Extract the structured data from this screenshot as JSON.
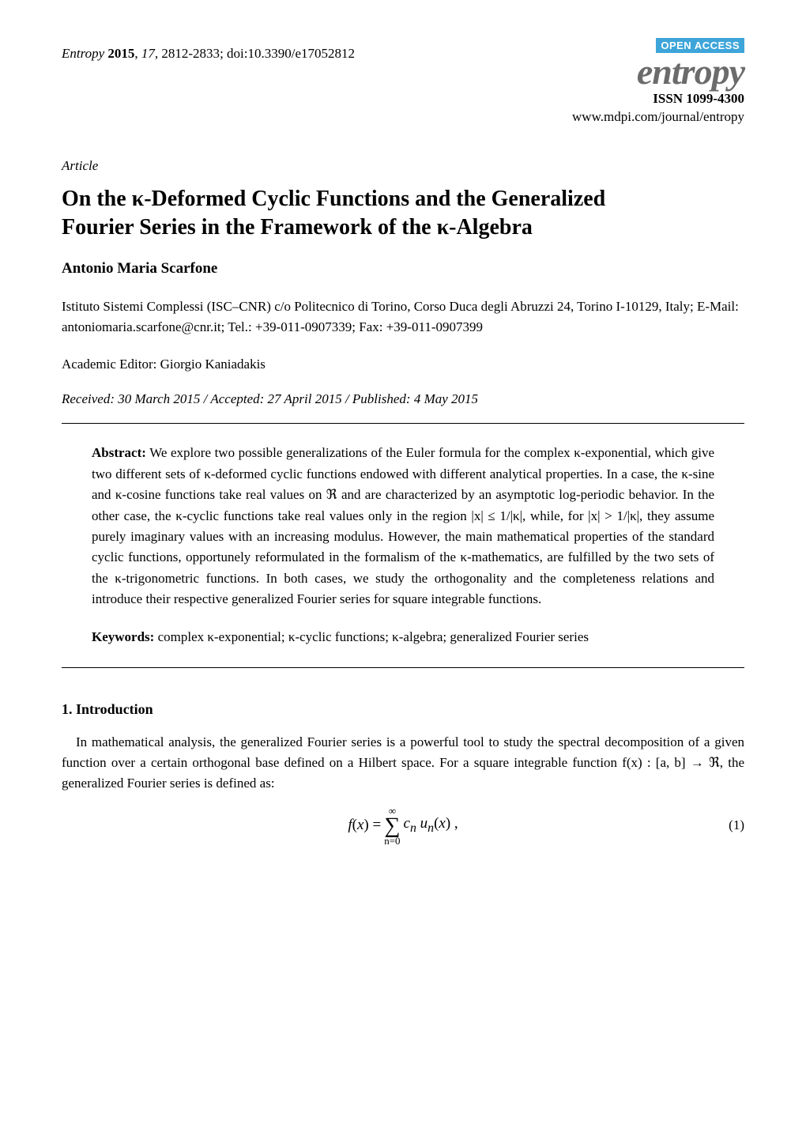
{
  "header": {
    "journal": "Entropy",
    "year": "2015",
    "volume": "17",
    "pages": "2812-2833",
    "doi": "doi:10.3390/e17052812"
  },
  "logo": {
    "open_access": "OPEN ACCESS",
    "name": "entropy",
    "issn": "ISSN 1099-4300",
    "url": "www.mdpi.com/journal/entropy"
  },
  "article_type": "Article",
  "title_line1": "On the κ-Deformed Cyclic Functions and the Generalized",
  "title_line2": "Fourier Series in the Framework of the κ-Algebra",
  "authors": "Antonio Maria Scarfone",
  "affiliation": "Istituto Sistemi Complessi (ISC–CNR) c/o Politecnico di Torino, Corso Duca degli Abruzzi 24, Torino I-10129, Italy; E-Mail: antoniomaria.scarfone@cnr.it; Tel.: +39-011-0907339; Fax: +39-011-0907399",
  "editor": "Academic Editor: Giorgio Kaniadakis",
  "dates": "Received: 30 March 2015 / Accepted: 27 April 2015 / Published: 4 May 2015",
  "abstract": {
    "label": "Abstract:",
    "text": "We explore two possible generalizations of the Euler formula for the complex κ-exponential, which give two different sets of κ-deformed cyclic functions endowed with different analytical properties. In a case, the κ-sine and κ-cosine functions take real values on ℜ and are characterized by an asymptotic log-periodic behavior. In the other case, the κ-cyclic functions take real values only in the region |x| ≤ 1/|κ|, while, for |x| > 1/|κ|, they assume purely imaginary values with an increasing modulus. However, the main mathematical properties of the standard cyclic functions, opportunely reformulated in the formalism of the κ-mathematics, are fulfilled by the two sets of the κ-trigonometric functions. In both cases, we study the orthogonality and the completeness relations and introduce their respective generalized Fourier series for square integrable functions."
  },
  "keywords": {
    "label": "Keywords:",
    "text": "complex κ-exponential; κ-cyclic functions; κ-algebra; generalized Fourier series"
  },
  "section1": {
    "heading": "1. Introduction",
    "para1": "In mathematical analysis, the generalized Fourier series is a powerful tool to study the spectral decomposition of a given function over a certain orthogonal base defined on a Hilbert space. For a square integrable function f(x) : [a, b] → ℜ, the generalized Fourier series is defined as:"
  },
  "equation1": {
    "lhs": "f(x) = ",
    "sum_top": "∞",
    "sum_bottom": "n=0",
    "rhs": " cₙ uₙ(x) ,",
    "number": "(1)"
  },
  "colors": {
    "open_access_bg": "#3da5d9",
    "open_access_fg": "#ffffff",
    "logo_gray": "#6b6b6b",
    "text": "#000000",
    "bg": "#ffffff"
  },
  "fonts": {
    "body_family": "Times New Roman",
    "body_size_pt": 12,
    "title_size_pt": 20,
    "logo_size_pt": 34
  }
}
